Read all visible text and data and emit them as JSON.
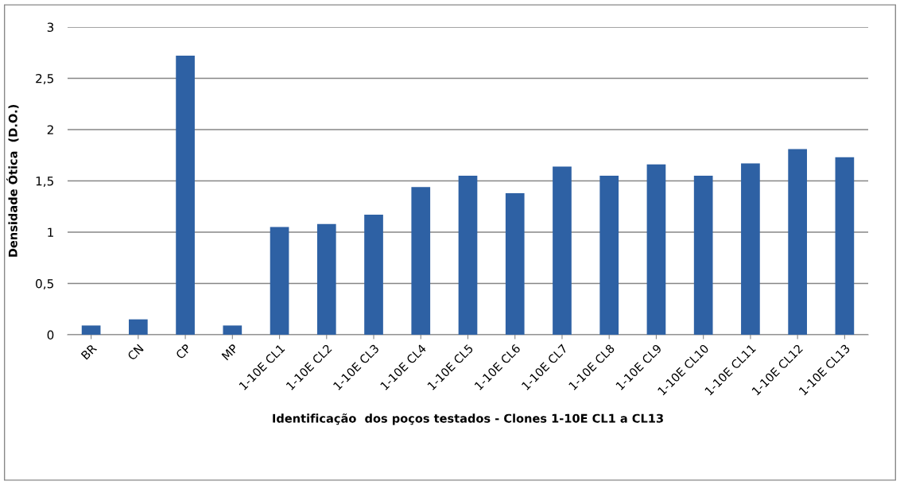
{
  "chart_data": {
    "type": "bar",
    "xlabel": "Identificação  dos poços testados - Clones 1-10E CL1 a CL13",
    "ylabel": "Densidade Ótica  (D.O.)",
    "categories": [
      "BR",
      "CN",
      "CP",
      "MP",
      "1-10E CL1",
      "1-10E CL2",
      "1-10E CL3",
      "1-10E CL4",
      "1-10E CL5",
      "1-10E CL6",
      "1-10E CL7",
      "1-10E CL8",
      "1-10E CL9",
      "1-10E CL10",
      "1-10E CL11",
      "1-10E CL12",
      "1-10E CL13"
    ],
    "values": [
      0.09,
      0.15,
      2.72,
      0.09,
      1.05,
      1.08,
      1.17,
      1.44,
      1.55,
      1.38,
      1.64,
      1.55,
      1.66,
      1.55,
      1.67,
      1.81,
      1.73
    ],
    "color": "#2e61a4",
    "ylim": [
      0,
      3
    ],
    "yticks": [
      0,
      {
        "value": 0.5,
        "label": "0,5"
      },
      1,
      {
        "value": 1.5,
        "label": "1,5"
      },
      2,
      {
        "value": 2.5,
        "label": "2,5"
      },
      3
    ],
    "grid": "y",
    "legend": false
  }
}
